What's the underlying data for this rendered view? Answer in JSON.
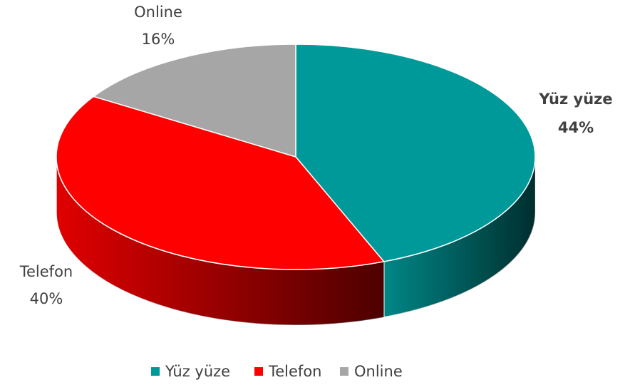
{
  "chart_data": {
    "type": "pie3d",
    "categories": [
      "Yüz yüze",
      "Telefon",
      "Online"
    ],
    "values": [
      44,
      40,
      16
    ],
    "value_labels": [
      "44%",
      "40%",
      "16%"
    ],
    "colors": [
      "#009999",
      "#ff0000",
      "#a6a6a6"
    ],
    "legend": "bottom"
  }
}
